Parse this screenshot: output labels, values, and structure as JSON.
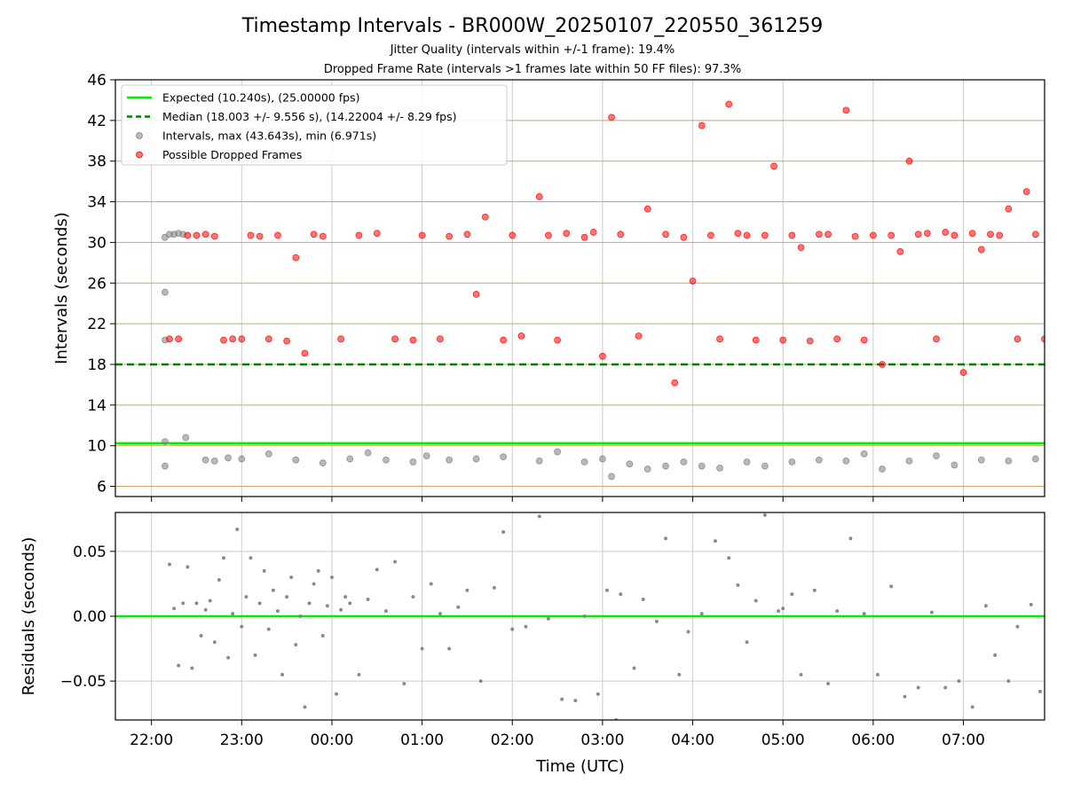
{
  "title": "Timestamp Intervals - BR000W_20250107_220550_361259",
  "subtitle1": "Jitter Quality (intervals within +/-1 frame): 19.4%",
  "subtitle2": "Dropped Frame Rate (intervals >1 frames late within 50 FF files): 97.3%",
  "colors": {
    "expected": "#00ee00",
    "median": "#008000",
    "interval": "#808080",
    "dropped": "#ff0000",
    "hgrid": "#c8a96b",
    "vgrid": "#cccccc"
  },
  "chart_data": [
    {
      "type": "scatter",
      "ylabel": "Intervals (seconds)",
      "xlabel": "",
      "ylim": [
        5,
        46
      ],
      "xlim_hours": [
        21.6,
        31.9
      ],
      "yticks": [
        6,
        10,
        14,
        18,
        22,
        26,
        30,
        34,
        38,
        42,
        46
      ],
      "grid": "on",
      "legend_position": "top-left",
      "series": [
        {
          "name": "Expected (10.240s), (25.00000 fps)",
          "kind": "hline",
          "y": 10.24
        },
        {
          "name": "Median (18.003 +/- 9.556 s), (14.22004 +/- 8.29 fps)",
          "kind": "hline-dashed",
          "y": 18.003
        },
        {
          "name": "Intervals, max (43.643s), min (6.971s)",
          "kind": "scatter",
          "max": 43.643,
          "min": 6.971,
          "points": [
            [
              22.15,
              25.1
            ],
            [
              22.15,
              8.0
            ],
            [
              22.15,
              10.4
            ],
            [
              22.15,
              20.4
            ],
            [
              22.15,
              30.5
            ],
            [
              22.2,
              30.8
            ],
            [
              22.25,
              30.8
            ],
            [
              22.3,
              30.9
            ],
            [
              22.35,
              30.8
            ],
            [
              22.38,
              10.8
            ],
            [
              22.6,
              8.6
            ],
            [
              22.7,
              8.5
            ],
            [
              22.85,
              8.8
            ],
            [
              23.0,
              8.7
            ],
            [
              23.3,
              9.2
            ],
            [
              23.6,
              8.6
            ],
            [
              23.9,
              8.3
            ],
            [
              24.2,
              8.7
            ],
            [
              24.4,
              9.3
            ],
            [
              24.6,
              8.6
            ],
            [
              24.9,
              8.4
            ],
            [
              25.05,
              9.0
            ],
            [
              25.3,
              8.6
            ],
            [
              25.6,
              8.7
            ],
            [
              25.9,
              8.9
            ],
            [
              26.3,
              8.5
            ],
            [
              26.5,
              9.4
            ],
            [
              26.8,
              8.4
            ],
            [
              27.0,
              8.7
            ],
            [
              27.1,
              6.97
            ],
            [
              27.3,
              8.2
            ],
            [
              27.5,
              7.7
            ],
            [
              27.7,
              8.0
            ],
            [
              27.9,
              8.4
            ],
            [
              28.1,
              8.0
            ],
            [
              28.3,
              7.8
            ],
            [
              28.6,
              8.4
            ],
            [
              28.8,
              8.0
            ],
            [
              29.1,
              8.4
            ],
            [
              29.4,
              8.6
            ],
            [
              29.7,
              8.5
            ],
            [
              29.9,
              9.2
            ],
            [
              30.1,
              7.7
            ],
            [
              30.4,
              8.5
            ],
            [
              30.7,
              9.0
            ],
            [
              30.9,
              8.1
            ],
            [
              31.2,
              8.6
            ],
            [
              31.5,
              8.5
            ],
            [
              31.8,
              8.7
            ]
          ]
        },
        {
          "name": "Possible Dropped Frames",
          "kind": "scatter",
          "points": [
            [
              22.2,
              20.5
            ],
            [
              22.3,
              20.5
            ],
            [
              22.4,
              30.7
            ],
            [
              22.5,
              30.7
            ],
            [
              22.6,
              30.8
            ],
            [
              22.7,
              30.6
            ],
            [
              22.8,
              20.4
            ],
            [
              22.9,
              20.5
            ],
            [
              23.0,
              20.5
            ],
            [
              23.1,
              30.7
            ],
            [
              23.2,
              30.6
            ],
            [
              23.3,
              20.5
            ],
            [
              23.4,
              30.7
            ],
            [
              23.5,
              20.3
            ],
            [
              23.6,
              28.5
            ],
            [
              23.7,
              19.1
            ],
            [
              23.8,
              30.8
            ],
            [
              23.9,
              30.6
            ],
            [
              24.1,
              20.5
            ],
            [
              24.3,
              30.7
            ],
            [
              24.5,
              30.9
            ],
            [
              24.7,
              20.5
            ],
            [
              24.9,
              20.4
            ],
            [
              25.0,
              30.7
            ],
            [
              25.2,
              20.5
            ],
            [
              25.3,
              30.6
            ],
            [
              25.5,
              30.8
            ],
            [
              25.6,
              24.9
            ],
            [
              25.7,
              32.5
            ],
            [
              25.9,
              20.4
            ],
            [
              26.0,
              30.7
            ],
            [
              26.1,
              20.8
            ],
            [
              26.3,
              34.5
            ],
            [
              26.4,
              30.7
            ],
            [
              26.5,
              20.4
            ],
            [
              26.6,
              30.9
            ],
            [
              26.8,
              30.5
            ],
            [
              26.9,
              31.0
            ],
            [
              27.0,
              18.8
            ],
            [
              27.1,
              42.3
            ],
            [
              27.2,
              30.8
            ],
            [
              27.4,
              20.8
            ],
            [
              27.5,
              33.3
            ],
            [
              27.7,
              30.8
            ],
            [
              27.8,
              16.2
            ],
            [
              27.9,
              30.5
            ],
            [
              28.0,
              26.2
            ],
            [
              28.1,
              41.5
            ],
            [
              28.2,
              30.7
            ],
            [
              28.3,
              20.5
            ],
            [
              28.4,
              43.6
            ],
            [
              28.5,
              30.9
            ],
            [
              28.6,
              30.7
            ],
            [
              28.7,
              20.4
            ],
            [
              28.8,
              30.7
            ],
            [
              28.9,
              37.5
            ],
            [
              29.0,
              20.4
            ],
            [
              29.1,
              30.7
            ],
            [
              29.2,
              29.5
            ],
            [
              29.3,
              20.3
            ],
            [
              29.4,
              30.8
            ],
            [
              29.5,
              30.8
            ],
            [
              29.6,
              20.5
            ],
            [
              29.7,
              43.0
            ],
            [
              29.8,
              30.6
            ],
            [
              29.9,
              20.4
            ],
            [
              30.0,
              30.7
            ],
            [
              30.1,
              18.0
            ],
            [
              30.2,
              30.7
            ],
            [
              30.3,
              29.1
            ],
            [
              30.4,
              38.0
            ],
            [
              30.5,
              30.8
            ],
            [
              30.6,
              30.9
            ],
            [
              30.7,
              20.5
            ],
            [
              30.8,
              31.0
            ],
            [
              30.9,
              30.7
            ],
            [
              31.0,
              17.2
            ],
            [
              31.1,
              30.9
            ],
            [
              31.2,
              29.3
            ],
            [
              31.3,
              30.8
            ],
            [
              31.4,
              30.7
            ],
            [
              31.5,
              33.3
            ],
            [
              31.6,
              20.5
            ],
            [
              31.7,
              35.0
            ],
            [
              31.8,
              30.8
            ],
            [
              31.9,
              20.5
            ]
          ]
        }
      ]
    },
    {
      "type": "scatter",
      "ylabel": "Residuals (seconds)",
      "xlabel": "Time (UTC)",
      "ylim": [
        -0.08,
        0.08
      ],
      "xlim_hours": [
        21.6,
        31.9
      ],
      "yticks": [
        -0.05,
        0.0,
        0.05
      ],
      "ytick_labels": [
        "−0.05",
        "0.00",
        "0.05"
      ],
      "xticks_hours": [
        22,
        23,
        24,
        25,
        26,
        27,
        28,
        29,
        30,
        31
      ],
      "xtick_labels": [
        "22:00",
        "23:00",
        "00:00",
        "01:00",
        "02:00",
        "03:00",
        "04:00",
        "05:00",
        "06:00",
        "07:00"
      ],
      "grid": "on",
      "series": [
        {
          "name": "",
          "kind": "hline",
          "y": 0
        },
        {
          "name": "",
          "kind": "scatter",
          "points": [
            [
              22.2,
              0.04
            ],
            [
              22.25,
              0.006
            ],
            [
              22.3,
              -0.038
            ],
            [
              22.35,
              0.01
            ],
            [
              22.4,
              0.038
            ],
            [
              22.45,
              -0.04
            ],
            [
              22.5,
              0.01
            ],
            [
              22.55,
              -0.015
            ],
            [
              22.6,
              0.005
            ],
            [
              22.65,
              0.012
            ],
            [
              22.7,
              -0.02
            ],
            [
              22.75,
              0.028
            ],
            [
              22.8,
              0.045
            ],
            [
              22.85,
              -0.032
            ],
            [
              22.9,
              0.002
            ],
            [
              22.95,
              0.067
            ],
            [
              23.0,
              -0.008
            ],
            [
              23.05,
              0.015
            ],
            [
              23.1,
              0.045
            ],
            [
              23.15,
              -0.03
            ],
            [
              23.2,
              0.01
            ],
            [
              23.25,
              0.035
            ],
            [
              23.3,
              -0.01
            ],
            [
              23.35,
              0.02
            ],
            [
              23.4,
              0.004
            ],
            [
              23.45,
              -0.045
            ],
            [
              23.5,
              0.015
            ],
            [
              23.55,
              0.03
            ],
            [
              23.6,
              -0.022
            ],
            [
              23.65,
              0.0
            ],
            [
              23.7,
              -0.07
            ],
            [
              23.75,
              0.01
            ],
            [
              23.8,
              0.025
            ],
            [
              23.85,
              0.035
            ],
            [
              23.9,
              -0.015
            ],
            [
              23.95,
              0.008
            ],
            [
              24.0,
              0.03
            ],
            [
              24.05,
              -0.06
            ],
            [
              24.1,
              0.005
            ],
            [
              24.15,
              0.015
            ],
            [
              24.2,
              0.01
            ],
            [
              24.3,
              -0.045
            ],
            [
              24.4,
              0.013
            ],
            [
              24.5,
              0.036
            ],
            [
              24.6,
              0.004
            ],
            [
              24.7,
              0.042
            ],
            [
              24.8,
              -0.052
            ],
            [
              24.9,
              0.015
            ],
            [
              25.0,
              -0.025
            ],
            [
              25.1,
              0.025
            ],
            [
              25.2,
              0.002
            ],
            [
              25.3,
              -0.025
            ],
            [
              25.4,
              0.007
            ],
            [
              25.5,
              0.02
            ],
            [
              25.65,
              -0.05
            ],
            [
              25.8,
              0.022
            ],
            [
              25.9,
              0.065
            ],
            [
              26.0,
              -0.01
            ],
            [
              26.15,
              -0.008
            ],
            [
              26.3,
              0.077
            ],
            [
              26.4,
              -0.002
            ],
            [
              26.55,
              -0.064
            ],
            [
              26.7,
              -0.065
            ],
            [
              26.8,
              0.0
            ],
            [
              26.95,
              -0.06
            ],
            [
              27.05,
              0.02
            ],
            [
              27.15,
              -0.08
            ],
            [
              27.2,
              0.017
            ],
            [
              27.35,
              -0.04
            ],
            [
              27.45,
              0.013
            ],
            [
              27.6,
              -0.004
            ],
            [
              27.7,
              0.06
            ],
            [
              27.85,
              -0.045
            ],
            [
              27.95,
              -0.012
            ],
            [
              28.1,
              0.002
            ],
            [
              28.25,
              0.058
            ],
            [
              28.4,
              0.045
            ],
            [
              28.5,
              0.024
            ],
            [
              28.6,
              -0.02
            ],
            [
              28.7,
              0.012
            ],
            [
              28.8,
              0.078
            ],
            [
              28.95,
              0.004
            ],
            [
              29.0,
              0.006
            ],
            [
              29.1,
              0.017
            ],
            [
              29.2,
              -0.045
            ],
            [
              29.35,
              0.02
            ],
            [
              29.5,
              -0.052
            ],
            [
              29.6,
              0.004
            ],
            [
              29.75,
              0.06
            ],
            [
              29.9,
              0.002
            ],
            [
              30.05,
              -0.045
            ],
            [
              30.2,
              0.023
            ],
            [
              30.35,
              -0.062
            ],
            [
              30.5,
              -0.055
            ],
            [
              30.65,
              0.003
            ],
            [
              30.8,
              -0.055
            ],
            [
              30.95,
              -0.05
            ],
            [
              31.1,
              -0.07
            ],
            [
              31.25,
              0.008
            ],
            [
              31.35,
              -0.03
            ],
            [
              31.5,
              -0.05
            ],
            [
              31.6,
              -0.008
            ],
            [
              31.75,
              0.009
            ],
            [
              31.85,
              -0.058
            ]
          ]
        }
      ]
    }
  ]
}
